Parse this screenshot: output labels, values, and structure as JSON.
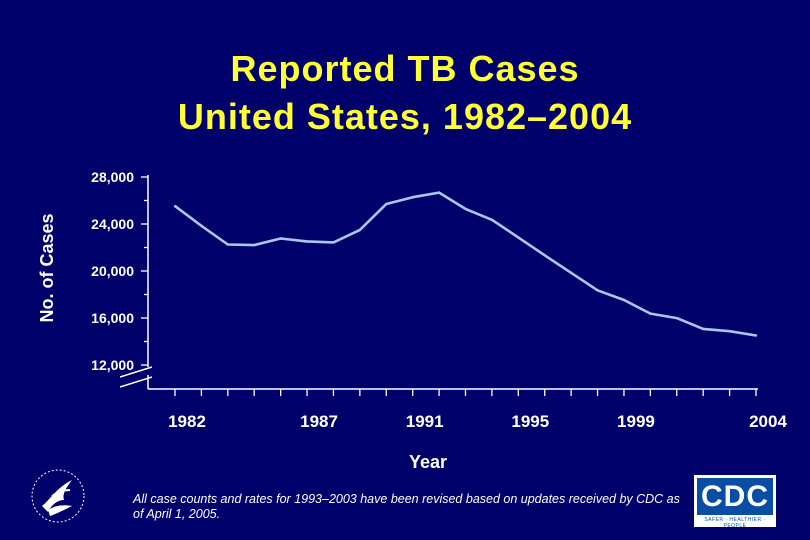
{
  "title": {
    "line1": "Reported TB Cases",
    "line2": "United States, 1982–2004"
  },
  "chart_data": {
    "type": "line",
    "title": "Reported TB Cases United States, 1982–2004",
    "xlabel": "Year",
    "ylabel": "No. of Cases",
    "ylim": [
      12000,
      28000
    ],
    "yticks": [
      12000,
      16000,
      20000,
      24000,
      28000
    ],
    "ytick_labels": [
      "12,000",
      "16,000",
      "20,000",
      "24,000",
      "28,000"
    ],
    "xlim": [
      1982,
      2004
    ],
    "xtick_labels": [
      {
        "year": 1982,
        "label": "1982"
      },
      {
        "year": 1987,
        "label": "1987"
      },
      {
        "year": 1991,
        "label": "1991"
      },
      {
        "year": 1995,
        "label": "1995"
      },
      {
        "year": 1999,
        "label": "1999"
      },
      {
        "year": 2004,
        "label": "2004"
      }
    ],
    "axis_break": true,
    "series": [
      {
        "name": "Reported TB cases",
        "color": "#a9c8f0",
        "x": [
          1982,
          1983,
          1984,
          1985,
          1986,
          1987,
          1988,
          1989,
          1990,
          1991,
          1992,
          1993,
          1994,
          1995,
          1996,
          1997,
          1998,
          1999,
          2000,
          2001,
          2002,
          2003,
          2004
        ],
        "values": [
          25520,
          23846,
          22255,
          22201,
          22768,
          22517,
          22436,
          23495,
          25701,
          26283,
          26673,
          25287,
          24361,
          22860,
          21337,
          19851,
          18361,
          17531,
          16377,
          15989,
          15075,
          14874,
          14511
        ]
      }
    ]
  },
  "footnote": "All case counts and rates for 1993–2003 have been revised based on updates received by CDC as of April 1, 2005.",
  "logos": {
    "cdc_text": "CDC",
    "cdc_tagline": "SAFER · HEALTHIER · PEOPLE",
    "hhs_icon": "hhs-eagle-icon"
  },
  "colors": {
    "background": "#00006b",
    "title": "#ffff33",
    "line": "#a9c8f0",
    "text": "#ffffff"
  }
}
